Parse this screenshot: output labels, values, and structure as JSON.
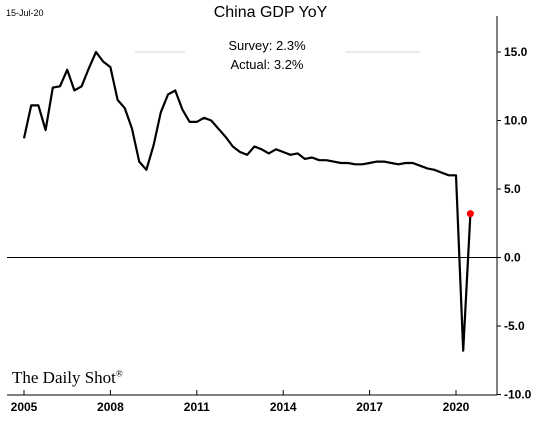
{
  "date_stamp": "15-Jul-20",
  "brand": "The Daily Shot",
  "brand_mark": "®",
  "chart_data": {
    "type": "line",
    "title": "China GDP YoY",
    "annotations": [
      "Survey: 2.3%",
      "Actual:  3.2%"
    ],
    "xlim": [
      2005,
      2021.1
    ],
    "ylim": [
      -10,
      16.5
    ],
    "x_ticks": [
      2005,
      2008,
      2011,
      2014,
      2017,
      2020
    ],
    "x_tick_labels": [
      "2005",
      "2008",
      "2011",
      "2014",
      "2017",
      "2020"
    ],
    "y_ticks": [
      15,
      10,
      5,
      0,
      -5,
      -10
    ],
    "y_tick_labels": [
      "15.0",
      "10.0",
      "5.0",
      "0.0",
      "-5.0",
      "-10.0"
    ],
    "y_axis_position": "right",
    "grid": false,
    "reference_line": 0,
    "series": [
      {
        "x": [
          2005.0,
          2005.25,
          2005.5,
          2005.75,
          2006.0,
          2006.25,
          2006.5,
          2006.75,
          2007.0,
          2007.25,
          2007.5,
          2007.75,
          2008.0,
          2008.25,
          2008.5,
          2008.75,
          2009.0,
          2009.25,
          2009.5,
          2009.75,
          2010.0,
          2010.25,
          2010.5,
          2010.75,
          2011.0,
          2011.25,
          2011.5,
          2011.75,
          2012.0,
          2012.25,
          2012.5,
          2012.75,
          2013.0,
          2013.25,
          2013.5,
          2013.75,
          2014.0,
          2014.25,
          2014.5,
          2014.75,
          2015.0,
          2015.25,
          2015.5,
          2015.75,
          2016.0,
          2016.25,
          2016.5,
          2016.75,
          2017.0,
          2017.25,
          2017.5,
          2017.75,
          2018.0,
          2018.25,
          2018.5,
          2018.75,
          2019.0,
          2019.25,
          2019.5,
          2019.75,
          2020.0,
          2020.25,
          2020.5
        ],
        "values": [
          8.7,
          11.1,
          11.1,
          9.3,
          12.4,
          12.5,
          13.7,
          12.2,
          12.5,
          13.8,
          15.0,
          14.3,
          13.9,
          11.5,
          10.9,
          9.4,
          7.0,
          6.4,
          8.2,
          10.6,
          11.9,
          12.2,
          10.8,
          9.9,
          9.9,
          10.2,
          10.0,
          9.4,
          8.8,
          8.1,
          7.7,
          7.5,
          8.1,
          7.9,
          7.6,
          7.9,
          7.7,
          7.5,
          7.6,
          7.2,
          7.3,
          7.1,
          7.1,
          7.0,
          6.9,
          6.9,
          6.8,
          6.8,
          6.9,
          7.0,
          7.0,
          6.9,
          6.8,
          6.9,
          6.9,
          6.7,
          6.5,
          6.4,
          6.2,
          6.0,
          6.0,
          -6.8,
          3.2
        ]
      }
    ],
    "highlight_point": {
      "x": 2020.5,
      "y": 3.2,
      "color": "#ff0000"
    },
    "line_color": "#000000"
  }
}
